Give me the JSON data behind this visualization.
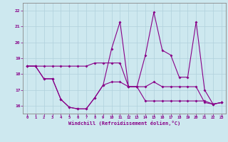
{
  "xlabel": "Windchill (Refroidissement éolien,°C)",
  "background_color": "#cde8ef",
  "grid_color": "#b0d0dc",
  "line_color": "#880088",
  "xlim": [
    -0.5,
    23.5
  ],
  "ylim": [
    15.5,
    22.5
  ],
  "yticks": [
    16,
    17,
    18,
    19,
    20,
    21,
    22
  ],
  "xticks": [
    0,
    1,
    2,
    3,
    4,
    5,
    6,
    7,
    8,
    9,
    10,
    11,
    12,
    13,
    14,
    15,
    16,
    17,
    18,
    19,
    20,
    21,
    22,
    23
  ],
  "series1_x": [
    0,
    1,
    2,
    3,
    4,
    5,
    6,
    7,
    8,
    9,
    10,
    11,
    12,
    13,
    14,
    15,
    16,
    17,
    18,
    19,
    20,
    21,
    22,
    23
  ],
  "series1_y": [
    18.5,
    18.5,
    18.5,
    18.5,
    18.5,
    18.5,
    18.5,
    18.5,
    18.7,
    18.7,
    18.7,
    18.7,
    17.2,
    17.2,
    17.2,
    17.5,
    17.2,
    17.2,
    17.2,
    17.2,
    17.2,
    16.2,
    16.1,
    16.2
  ],
  "series2_x": [
    0,
    1,
    2,
    3,
    4,
    5,
    6,
    7,
    8,
    9,
    10,
    11,
    12,
    13,
    14,
    15,
    16,
    17,
    18,
    19,
    20,
    21,
    22,
    23
  ],
  "series2_y": [
    18.5,
    18.5,
    17.7,
    17.7,
    16.4,
    15.9,
    15.8,
    15.8,
    16.5,
    17.3,
    19.6,
    21.3,
    17.2,
    17.2,
    19.2,
    21.9,
    19.5,
    19.2,
    17.8,
    17.8,
    21.3,
    17.0,
    16.1,
    16.2
  ],
  "series3_x": [
    0,
    1,
    2,
    3,
    4,
    5,
    6,
    7,
    8,
    9,
    10,
    11,
    12,
    13,
    14,
    15,
    16,
    17,
    18,
    19,
    20,
    21,
    22,
    23
  ],
  "series3_y": [
    18.5,
    18.5,
    17.7,
    17.7,
    16.4,
    15.9,
    15.8,
    15.8,
    16.5,
    17.3,
    17.5,
    17.5,
    17.2,
    17.2,
    16.3,
    16.3,
    16.3,
    16.3,
    16.3,
    16.3,
    16.3,
    16.3,
    16.1,
    16.2
  ]
}
